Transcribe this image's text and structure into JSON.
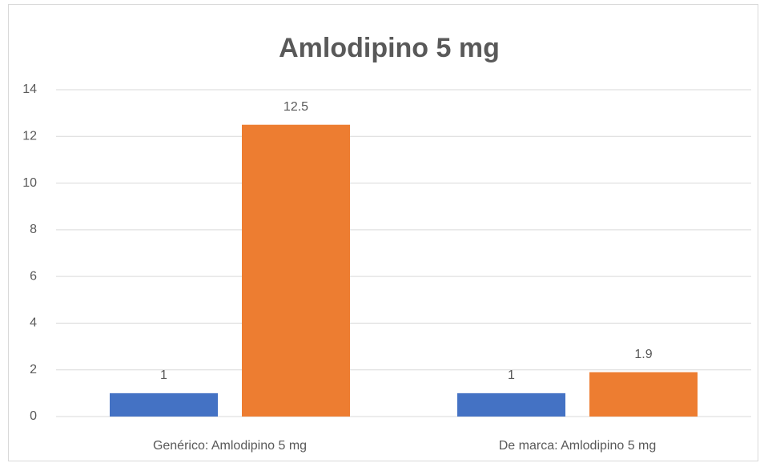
{
  "chart_data": {
    "type": "bar",
    "title": "Amlodipino 5 mg",
    "categories": [
      "Genérico: Amlodipino 5 mg",
      "De marca: Amlodipino 5 mg"
    ],
    "series": [
      {
        "color": "#4472c4",
        "values": [
          1,
          1
        ]
      },
      {
        "color": "#ed7d31",
        "values": [
          12.5,
          1.9
        ]
      }
    ],
    "ylim": [
      0,
      14
    ],
    "yticks": [
      0,
      2,
      4,
      6,
      8,
      10,
      12,
      14
    ],
    "grid": true
  }
}
